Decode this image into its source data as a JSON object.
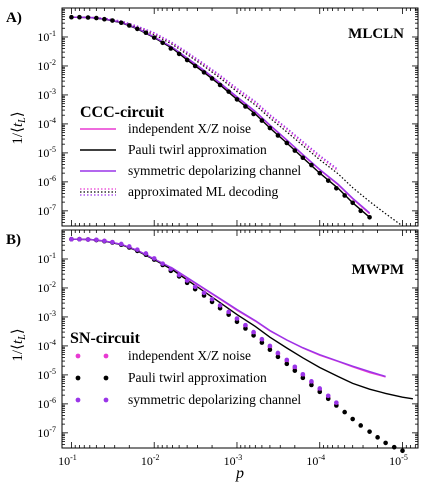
{
  "chart_data": [
    {
      "type": "line",
      "panel_label": "A)",
      "decoder": "MLCLN",
      "legend_title": "CCC-circuit",
      "xlabel": "p",
      "ylabel": "1/⟨t_L⟩",
      "x_scale": "log",
      "x_reversed": true,
      "xlim": [
        0.13,
        6.5e-06
      ],
      "y_scale": "log",
      "ylim": [
        3e-08,
        1
      ],
      "y_ticks": [
        "10-1",
        "10-2",
        "10-3",
        "10-4",
        "10-5",
        "10-6",
        "10-7"
      ],
      "legend_position": "bottom-left",
      "series": [
        {
          "name": "independent X/Z noise",
          "color": "#e83ad2",
          "style": "solid",
          "x": [
            0.1,
            0.06,
            0.04,
            0.025,
            0.016,
            0.01,
            0.006,
            0.004,
            0.0025,
            0.0016,
            0.001,
            0.0006,
            0.0004,
            0.00025,
            0.00016,
            0.0001,
            6e-05,
            4e-05,
            2.5e-05
          ],
          "y": [
            0.48,
            0.47,
            0.42,
            0.32,
            0.2,
            0.1,
            0.043,
            0.018,
            0.0068,
            0.0025,
            0.00082,
            0.00026,
            8.8e-05,
            2.7e-05,
            8.5e-06,
            2.6e-06,
            8e-07,
            2.6e-07,
            8e-08
          ]
        },
        {
          "name": "Pauli twirl approximation",
          "color": "#000000",
          "style": "solid",
          "x": [
            0.1,
            0.06,
            0.04,
            0.025,
            0.016,
            0.01,
            0.006,
            0.004,
            0.0025,
            0.0016,
            0.001,
            0.0006,
            0.0004,
            0.00025,
            0.00016,
            0.0001,
            6e-05,
            4e-05,
            2.5e-05
          ],
          "y": [
            0.48,
            0.47,
            0.41,
            0.31,
            0.19,
            0.095,
            0.04,
            0.016,
            0.006,
            0.0022,
            0.0007,
            0.00022,
            7.2e-05,
            2.2e-05,
            6.8e-06,
            2e-06,
            6e-07,
            1.9e-07,
            6e-08
          ]
        },
        {
          "name": "symmetric depolarizing channel",
          "color": "#9a35e8",
          "style": "solid",
          "x": [
            0.1,
            0.06,
            0.04,
            0.025,
            0.016,
            0.01,
            0.006,
            0.004,
            0.0025,
            0.0016,
            0.001,
            0.0006,
            0.0004,
            0.00025,
            0.00016,
            0.0001,
            6e-05,
            4e-05,
            2.5e-05
          ],
          "y": [
            0.48,
            0.47,
            0.42,
            0.32,
            0.2,
            0.1,
            0.044,
            0.019,
            0.0071,
            0.0026,
            0.00086,
            0.00027,
            9.2e-05,
            2.8e-05,
            8.8e-06,
            2.7e-06,
            8.3e-07,
            2.7e-07,
            8.5e-08
          ]
        },
        {
          "name": "approximated ML decoding",
          "color": "#000000",
          "style": "dotted",
          "x": [
            0.1,
            0.06,
            0.04,
            0.025,
            0.016,
            0.01,
            0.006,
            0.004,
            0.0025,
            0.0016,
            0.001,
            0.0006,
            0.0004,
            0.00025,
            0.00016,
            0.0001,
            6e-05,
            4e-05,
            2.5e-05,
            1.6e-05,
            1e-05
          ],
          "y": [
            0.49,
            0.48,
            0.43,
            0.34,
            0.22,
            0.12,
            0.055,
            0.025,
            0.0098,
            0.0038,
            0.0013,
            0.00045,
            0.00016,
            5.3e-05,
            1.8e-05,
            5.8e-06,
            1.9e-06,
            6.3e-07,
            2.1e-07,
            8e-08,
            3e-08
          ]
        },
        {
          "name": "",
          "color": "#e83ad2",
          "style": "dotted",
          "x": [
            0.1,
            0.06,
            0.04,
            0.025,
            0.016,
            0.01,
            0.006,
            0.004,
            0.0025,
            0.0016,
            0.001,
            0.0006,
            0.0004,
            0.00025,
            0.00016,
            0.0001,
            6e-05
          ],
          "y": [
            0.49,
            0.48,
            0.44,
            0.35,
            0.23,
            0.13,
            0.06,
            0.028,
            0.011,
            0.0044,
            0.0015,
            0.00053,
            0.00019,
            6.5e-05,
            2.2e-05,
            7.2e-06,
            2.4e-06
          ]
        },
        {
          "name": "",
          "color": "#9a35e8",
          "style": "dotted",
          "x": [
            0.1,
            0.06,
            0.04,
            0.025,
            0.016,
            0.01,
            0.006,
            0.004,
            0.0025,
            0.0016,
            0.001,
            0.0006,
            0.0004,
            0.00025,
            0.00016,
            0.0001,
            6e-05
          ],
          "y": [
            0.49,
            0.48,
            0.44,
            0.36,
            0.24,
            0.14,
            0.064,
            0.03,
            0.012,
            0.0048,
            0.0017,
            0.0006,
            0.00021,
            7.2e-05,
            2.5e-05,
            8.2e-06,
            2.7e-06
          ]
        },
        {
          "name": "",
          "color": "#000000",
          "style": "points",
          "x": [
            0.1,
            0.08,
            0.063,
            0.05,
            0.04,
            0.032,
            0.025,
            0.02,
            0.016,
            0.0126,
            0.01,
            0.0079,
            0.0063,
            0.005,
            0.004,
            0.0032,
            0.0025,
            0.002,
            0.0016,
            0.00126,
            0.001,
            0.00079,
            0.00063,
            0.0005,
            0.0004,
            0.00032,
            0.00025,
            0.0002,
            0.00016,
            0.000126,
            0.0001,
            7.9e-05,
            6.3e-05,
            5e-05,
            4e-05,
            3.2e-05,
            2.5e-05
          ],
          "y": [
            0.48,
            0.48,
            0.47,
            0.45,
            0.41,
            0.37,
            0.31,
            0.25,
            0.19,
            0.14,
            0.095,
            0.063,
            0.04,
            0.026,
            0.016,
            0.01,
            0.006,
            0.0037,
            0.0022,
            0.0013,
            0.0007,
            0.0004,
            0.00022,
            0.00013,
            7.2e-05,
            4e-05,
            2.2e-05,
            1.2e-05,
            6.8e-06,
            3.8e-06,
            2e-06,
            1.1e-06,
            6e-07,
            3.4e-07,
            1.9e-07,
            1e-07,
            6e-08
          ]
        }
      ]
    },
    {
      "type": "line",
      "panel_label": "B)",
      "decoder": "MWPM",
      "legend_title": "SN-circuit",
      "xlabel": "p",
      "ylabel": "1/⟨t_L⟩",
      "x_scale": "log",
      "x_reversed": true,
      "xlim": [
        0.13,
        6.5e-06
      ],
      "y_scale": "log",
      "ylim": [
        3e-08,
        1
      ],
      "x_ticks": [
        "10-1",
        "10-2",
        "10-3",
        "10-4",
        "10-5"
      ],
      "y_ticks": [
        "10-1",
        "10-2",
        "10-3",
        "10-4",
        "10-5",
        "10-6",
        "10-7"
      ],
      "legend_position": "bottom-left",
      "series": [
        {
          "name": "",
          "color": "#e83ad2",
          "style": "solid",
          "x": [
            0.1,
            0.06,
            0.04,
            0.025,
            0.016,
            0.01,
            0.006,
            0.004,
            0.0025,
            0.0016,
            0.001,
            0.0006,
            0.0004,
            0.00025,
            0.00016,
            0.0001,
            6e-05,
            4e-05,
            2.5e-05,
            1.6e-05
          ],
          "y": [
            0.48,
            0.47,
            0.42,
            0.32,
            0.2,
            0.1,
            0.047,
            0.022,
            0.0093,
            0.0041,
            0.0017,
            0.00072,
            0.00033,
            0.00016,
            8.5e-05,
            4.8e-05,
            2.9e-05,
            1.9e-05,
            1.2e-05,
            8.5e-06
          ]
        },
        {
          "name": "",
          "color": "#000000",
          "style": "solid",
          "x": [
            0.1,
            0.06,
            0.04,
            0.025,
            0.016,
            0.01,
            0.006,
            0.004,
            0.0025,
            0.0016,
            0.001,
            0.0006,
            0.0004,
            0.00025,
            0.00016,
            0.0001,
            6e-05,
            4e-05,
            2.5e-05,
            1.6e-05,
            1e-05,
            7.5e-06
          ],
          "y": [
            0.48,
            0.47,
            0.41,
            0.31,
            0.19,
            0.095,
            0.042,
            0.019,
            0.0076,
            0.0031,
            0.0012,
            0.00047,
            0.0002,
            8.5e-05,
            3.9e-05,
            1.8e-05,
            8.8e-06,
            5.1e-06,
            3.2e-06,
            2.3e-06,
            1.7e-06,
            1.5e-06
          ]
        },
        {
          "name": "",
          "color": "#9a35e8",
          "style": "solid",
          "x": [
            0.1,
            0.06,
            0.04,
            0.025,
            0.016,
            0.01,
            0.006,
            0.004,
            0.0025,
            0.0016,
            0.001,
            0.0006,
            0.0004,
            0.00025,
            0.00016,
            0.0001,
            6e-05,
            4e-05,
            2.5e-05,
            1.6e-05
          ],
          "y": [
            0.48,
            0.47,
            0.42,
            0.32,
            0.2,
            0.1,
            0.048,
            0.023,
            0.0097,
            0.0043,
            0.0018,
            0.00075,
            0.00034,
            0.00016,
            8.7e-05,
            5e-05,
            3e-05,
            2e-05,
            1.3e-05,
            8.9e-06
          ]
        },
        {
          "name": "independent X/Z noise",
          "color": "#e83ad2",
          "style": "points",
          "x": [
            0.1,
            0.08,
            0.063,
            0.05,
            0.04,
            0.032,
            0.025,
            0.02,
            0.016,
            0.0126,
            0.01,
            0.0079,
            0.0063,
            0.005,
            0.004,
            0.0032,
            0.0025,
            0.002,
            0.0016,
            0.00126,
            0.001,
            0.00079,
            0.00063,
            0.0005,
            0.0004,
            0.00032,
            0.00025,
            0.0002,
            0.00016,
            0.000126,
            0.0001,
            7.9e-05,
            6.3e-05
          ],
          "y": [
            0.48,
            0.48,
            0.47,
            0.45,
            0.42,
            0.38,
            0.32,
            0.26,
            0.2,
            0.15,
            0.1,
            0.066,
            0.043,
            0.027,
            0.017,
            0.0105,
            0.0064,
            0.0039,
            0.0023,
            0.0014,
            0.00082,
            0.00048,
            0.00028,
            0.00016,
            9.2e-05,
            5.3e-05,
            3e-05,
            1.7e-05,
            9.5e-06,
            5.4e-06,
            3e-06,
            1.7e-06,
            9.5e-07
          ]
        },
        {
          "name": "Pauli twirl approximation",
          "color": "#000000",
          "style": "points",
          "x": [
            0.1,
            0.08,
            0.063,
            0.05,
            0.04,
            0.032,
            0.025,
            0.02,
            0.016,
            0.0126,
            0.01,
            0.0079,
            0.0063,
            0.005,
            0.004,
            0.0032,
            0.0025,
            0.002,
            0.0016,
            0.00126,
            0.001,
            0.00079,
            0.00063,
            0.0005,
            0.0004,
            0.00032,
            0.00025,
            0.0002,
            0.00016,
            0.000126,
            0.0001,
            7.9e-05,
            6.3e-05,
            5e-05,
            4e-05,
            3.2e-05,
            2.5e-05,
            2e-05,
            1.6e-05,
            1.26e-05,
            1e-05
          ],
          "y": [
            0.48,
            0.48,
            0.47,
            0.45,
            0.41,
            0.37,
            0.31,
            0.25,
            0.19,
            0.14,
            0.095,
            0.062,
            0.039,
            0.025,
            0.015,
            0.0091,
            0.0055,
            0.0033,
            0.002,
            0.0012,
            0.00068,
            0.0004,
            0.00023,
            0.00013,
            7.4e-05,
            4.2e-05,
            2.4e-05,
            1.4e-05,
            7.9e-06,
            4.5e-06,
            2.6e-06,
            1.5e-06,
            8.8e-07,
            5.2e-07,
            3e-07,
            1.8e-07,
            1.1e-07,
            7e-08,
            4.5e-08,
            3.2e-08,
            2.4e-08
          ]
        },
        {
          "name": "symmetric depolarizing channel",
          "color": "#9a35e8",
          "style": "points",
          "x": [
            0.1,
            0.08,
            0.063,
            0.05,
            0.04,
            0.032,
            0.025,
            0.02,
            0.016,
            0.0126,
            0.01,
            0.0079,
            0.0063,
            0.005,
            0.004,
            0.0032,
            0.0025,
            0.002,
            0.0016,
            0.00126,
            0.001,
            0.00079,
            0.00063,
            0.0005,
            0.0004,
            0.00032,
            0.00025,
            0.0002,
            0.00016,
            0.000126,
            0.0001,
            7.9e-05,
            6.3e-05
          ],
          "y": [
            0.48,
            0.48,
            0.47,
            0.46,
            0.42,
            0.38,
            0.33,
            0.27,
            0.21,
            0.155,
            0.105,
            0.069,
            0.045,
            0.028,
            0.018,
            0.011,
            0.0068,
            0.0041,
            0.0025,
            0.0015,
            0.00088,
            0.00052,
            0.0003,
            0.00017,
            0.0001,
            5.7e-05,
            3.3e-05,
            1.9e-05,
            1.05e-05,
            6e-06,
            3.4e-06,
            1.9e-06,
            1.1e-06
          ]
        }
      ]
    }
  ]
}
